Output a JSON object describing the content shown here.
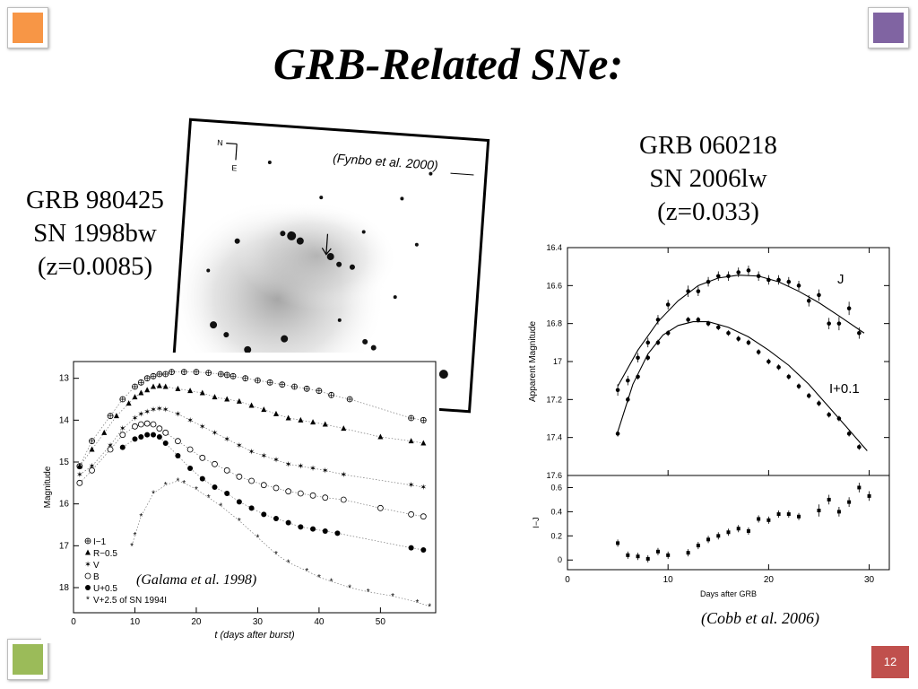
{
  "slide": {
    "title": "GRB-Related SNe:",
    "page_number": "12",
    "corner_colors": [
      "#f79646",
      "#8064a2",
      "#9bbb59",
      "#c0504d"
    ]
  },
  "left_label": [
    "GRB 980425",
    "SN 1998bw",
    "(z=0.0085)"
  ],
  "right_label": [
    "GRB 060218",
    "SN 2006lw",
    "(z=0.033)"
  ],
  "image_citation": "(Fynbo et al. 2000)",
  "image_compass": {
    "north": "N",
    "east": "E"
  },
  "chart_data": [
    {
      "type": "scatter",
      "citation": "(Galama et al. 1998)",
      "xlabel": "t  (days after burst)",
      "ylabel": "Magnitude",
      "xlim": [
        0,
        59
      ],
      "ylim": [
        18.6,
        12.6
      ],
      "xticks": [
        0,
        10,
        20,
        30,
        40,
        50
      ],
      "yticks": [
        13,
        14,
        15,
        16,
        17,
        18
      ],
      "legend_position": "bottom-left",
      "series": [
        {
          "name": "I−1",
          "marker": "circle-plus",
          "x": [
            1,
            3,
            6,
            8,
            10,
            11,
            12,
            13,
            14,
            15,
            16,
            18,
            20,
            22,
            24,
            25,
            26,
            28,
            30,
            32,
            34,
            36,
            38,
            40,
            42,
            45,
            55,
            57
          ],
          "y": [
            15.1,
            14.5,
            13.9,
            13.5,
            13.2,
            13.1,
            13.0,
            12.95,
            12.9,
            12.9,
            12.85,
            12.85,
            12.85,
            12.87,
            12.9,
            12.92,
            12.95,
            13.0,
            13.05,
            13.1,
            13.15,
            13.2,
            13.25,
            13.3,
            13.4,
            13.5,
            13.95,
            14.0
          ]
        },
        {
          "name": "R−0.5",
          "marker": "triangle",
          "x": [
            1,
            3,
            5,
            7,
            9,
            10,
            11,
            12,
            13,
            14,
            15,
            17,
            19,
            21,
            23,
            25,
            27,
            29,
            31,
            33,
            35,
            37,
            39,
            41,
            44,
            50,
            55,
            57
          ],
          "y": [
            15.1,
            14.7,
            14.3,
            13.9,
            13.6,
            13.45,
            13.35,
            13.28,
            13.2,
            13.18,
            13.2,
            13.25,
            13.3,
            13.35,
            13.45,
            13.5,
            13.55,
            13.65,
            13.75,
            13.85,
            13.95,
            14.0,
            14.05,
            14.1,
            14.2,
            14.4,
            14.5,
            14.55
          ]
        },
        {
          "name": "V",
          "marker": "star-open",
          "x": [
            1,
            3,
            6,
            8,
            10,
            11,
            12,
            13,
            14,
            15,
            17,
            19,
            21,
            23,
            25,
            27,
            29,
            31,
            33,
            35,
            37,
            39,
            41,
            44,
            55,
            57
          ],
          "y": [
            15.3,
            15.1,
            14.6,
            14.2,
            13.95,
            13.85,
            13.8,
            13.75,
            13.72,
            13.75,
            13.85,
            14.0,
            14.15,
            14.3,
            14.45,
            14.6,
            14.75,
            14.85,
            14.95,
            15.05,
            15.1,
            15.15,
            15.2,
            15.3,
            15.55,
            15.6
          ]
        },
        {
          "name": "B",
          "marker": "circle-open",
          "x": [
            1,
            3,
            6,
            8,
            10,
            11,
            12,
            13,
            14,
            15,
            17,
            19,
            21,
            23,
            25,
            27,
            29,
            31,
            33,
            35,
            37,
            39,
            41,
            44,
            50,
            55,
            57
          ],
          "y": [
            15.5,
            15.2,
            14.7,
            14.35,
            14.15,
            14.1,
            14.08,
            14.1,
            14.2,
            14.3,
            14.5,
            14.7,
            14.9,
            15.05,
            15.2,
            15.35,
            15.45,
            15.55,
            15.62,
            15.7,
            15.75,
            15.8,
            15.85,
            15.9,
            16.1,
            16.25,
            16.3
          ]
        },
        {
          "name": "U+0.5",
          "marker": "circle-filled",
          "x": [
            8,
            10,
            11,
            12,
            13,
            14,
            15,
            17,
            19,
            21,
            23,
            25,
            27,
            29,
            31,
            33,
            35,
            37,
            39,
            41,
            43,
            55,
            57
          ],
          "y": [
            14.65,
            14.45,
            14.4,
            14.35,
            14.35,
            14.4,
            14.55,
            14.85,
            15.15,
            15.4,
            15.6,
            15.75,
            15.95,
            16.1,
            16.25,
            16.35,
            16.45,
            16.55,
            16.6,
            16.65,
            16.7,
            17.05,
            17.1
          ]
        },
        {
          "name": "V+2.5 of SN 1994I",
          "marker": "asterisk",
          "x": [
            9.5,
            10,
            11,
            13,
            15,
            17,
            18,
            20,
            22,
            24,
            27,
            30,
            33,
            35,
            38,
            40,
            42,
            45,
            48,
            52,
            56,
            58
          ],
          "y": [
            17.0,
            16.75,
            16.3,
            15.75,
            15.55,
            15.45,
            15.5,
            15.65,
            15.85,
            16.05,
            16.4,
            16.8,
            17.2,
            17.4,
            17.6,
            17.75,
            17.85,
            18.0,
            18.1,
            18.2,
            18.35,
            18.45
          ]
        }
      ]
    },
    {
      "type": "line",
      "citation": "(Cobb et al. 2006)",
      "xlabel": "Days after GRB",
      "ylabel": "Apparent Magnitude",
      "xlim": [
        0,
        32
      ],
      "ylim": [
        17.6,
        16.4
      ],
      "xticks": [
        0,
        10,
        20,
        30
      ],
      "yticks": [
        16.4,
        16.6,
        16.8,
        17,
        17.2,
        17.4,
        17.6
      ],
      "series": [
        {
          "name": "J",
          "x": [
            5,
            6,
            7,
            8,
            9,
            10,
            12,
            13,
            14,
            15,
            16,
            17,
            18,
            19,
            20,
            21,
            22,
            23,
            24,
            25,
            26,
            27,
            28,
            29
          ],
          "y": [
            17.15,
            17.1,
            16.98,
            16.9,
            16.78,
            16.7,
            16.63,
            16.63,
            16.58,
            16.55,
            16.55,
            16.53,
            16.52,
            16.55,
            16.57,
            16.57,
            16.58,
            16.6,
            16.68,
            16.65,
            16.8,
            16.8,
            16.72,
            16.85
          ],
          "errors": [
            0.03,
            0.025,
            0.025,
            0.025,
            0.025,
            0.025,
            0.03,
            0.025,
            0.025,
            0.025,
            0.025,
            0.025,
            0.025,
            0.025,
            0.025,
            0.025,
            0.025,
            0.025,
            0.03,
            0.03,
            0.03,
            0.035,
            0.035,
            0.03
          ],
          "fit_x": [
            5,
            7,
            9,
            11,
            13,
            15,
            17,
            19,
            21,
            23,
            25,
            27,
            29.5
          ],
          "fit_y": [
            17.13,
            16.94,
            16.79,
            16.68,
            16.6,
            16.56,
            16.545,
            16.55,
            16.58,
            16.63,
            16.69,
            16.76,
            16.85
          ]
        },
        {
          "name": "I+0.1",
          "x": [
            5,
            6,
            7,
            8,
            9,
            10,
            12,
            13,
            14,
            15,
            16,
            17,
            18,
            19,
            20,
            21,
            22,
            23,
            24,
            25,
            26,
            27,
            28,
            29
          ],
          "y": [
            17.38,
            17.2,
            17.08,
            16.98,
            16.9,
            16.85,
            16.78,
            16.78,
            16.8,
            16.82,
            16.85,
            16.88,
            16.9,
            16.95,
            17.0,
            17.03,
            17.08,
            17.13,
            17.18,
            17.22,
            17.28,
            17.3,
            17.38,
            17.45
          ],
          "errors": [
            0.015,
            0.015,
            0.015,
            0.015,
            0.015,
            0.015,
            0.015,
            0.015,
            0.015,
            0.015,
            0.015,
            0.015,
            0.015,
            0.015,
            0.015,
            0.015,
            0.015,
            0.015,
            0.015,
            0.015,
            0.015,
            0.015,
            0.015,
            0.015
          ],
          "fit_x": [
            5,
            6.5,
            8,
            9.5,
            11,
            12.5,
            14,
            16,
            18,
            20,
            22,
            24,
            26,
            28,
            29.8
          ],
          "fit_y": [
            17.37,
            17.12,
            16.96,
            16.86,
            16.81,
            16.79,
            16.79,
            16.82,
            16.87,
            16.94,
            17.02,
            17.12,
            17.24,
            17.36,
            17.47
          ]
        }
      ]
    },
    {
      "type": "scatter",
      "xlabel": "Days after GRB",
      "ylabel": "I−J",
      "xlim": [
        0,
        32
      ],
      "ylim": [
        -0.08,
        0.7
      ],
      "xticks": [
        0,
        10,
        20,
        30
      ],
      "yticks": [
        0,
        0.2,
        0.4,
        0.6
      ],
      "series": [
        {
          "x": [
            5,
            6,
            7,
            8,
            9,
            10,
            12,
            13,
            14,
            15,
            16,
            17,
            18,
            19,
            20,
            21,
            22,
            23,
            25,
            26,
            27,
            28,
            29,
            30
          ],
          "y": [
            0.14,
            0.04,
            0.03,
            0.01,
            0.07,
            0.04,
            0.06,
            0.12,
            0.17,
            0.2,
            0.23,
            0.26,
            0.24,
            0.34,
            0.33,
            0.38,
            0.38,
            0.36,
            0.41,
            0.5,
            0.4,
            0.48,
            0.6,
            0.53
          ],
          "errors": [
            0.03,
            0.03,
            0.03,
            0.03,
            0.03,
            0.03,
            0.03,
            0.03,
            0.03,
            0.03,
            0.03,
            0.03,
            0.03,
            0.03,
            0.03,
            0.03,
            0.03,
            0.03,
            0.05,
            0.04,
            0.04,
            0.04,
            0.04,
            0.04
          ]
        }
      ]
    }
  ]
}
